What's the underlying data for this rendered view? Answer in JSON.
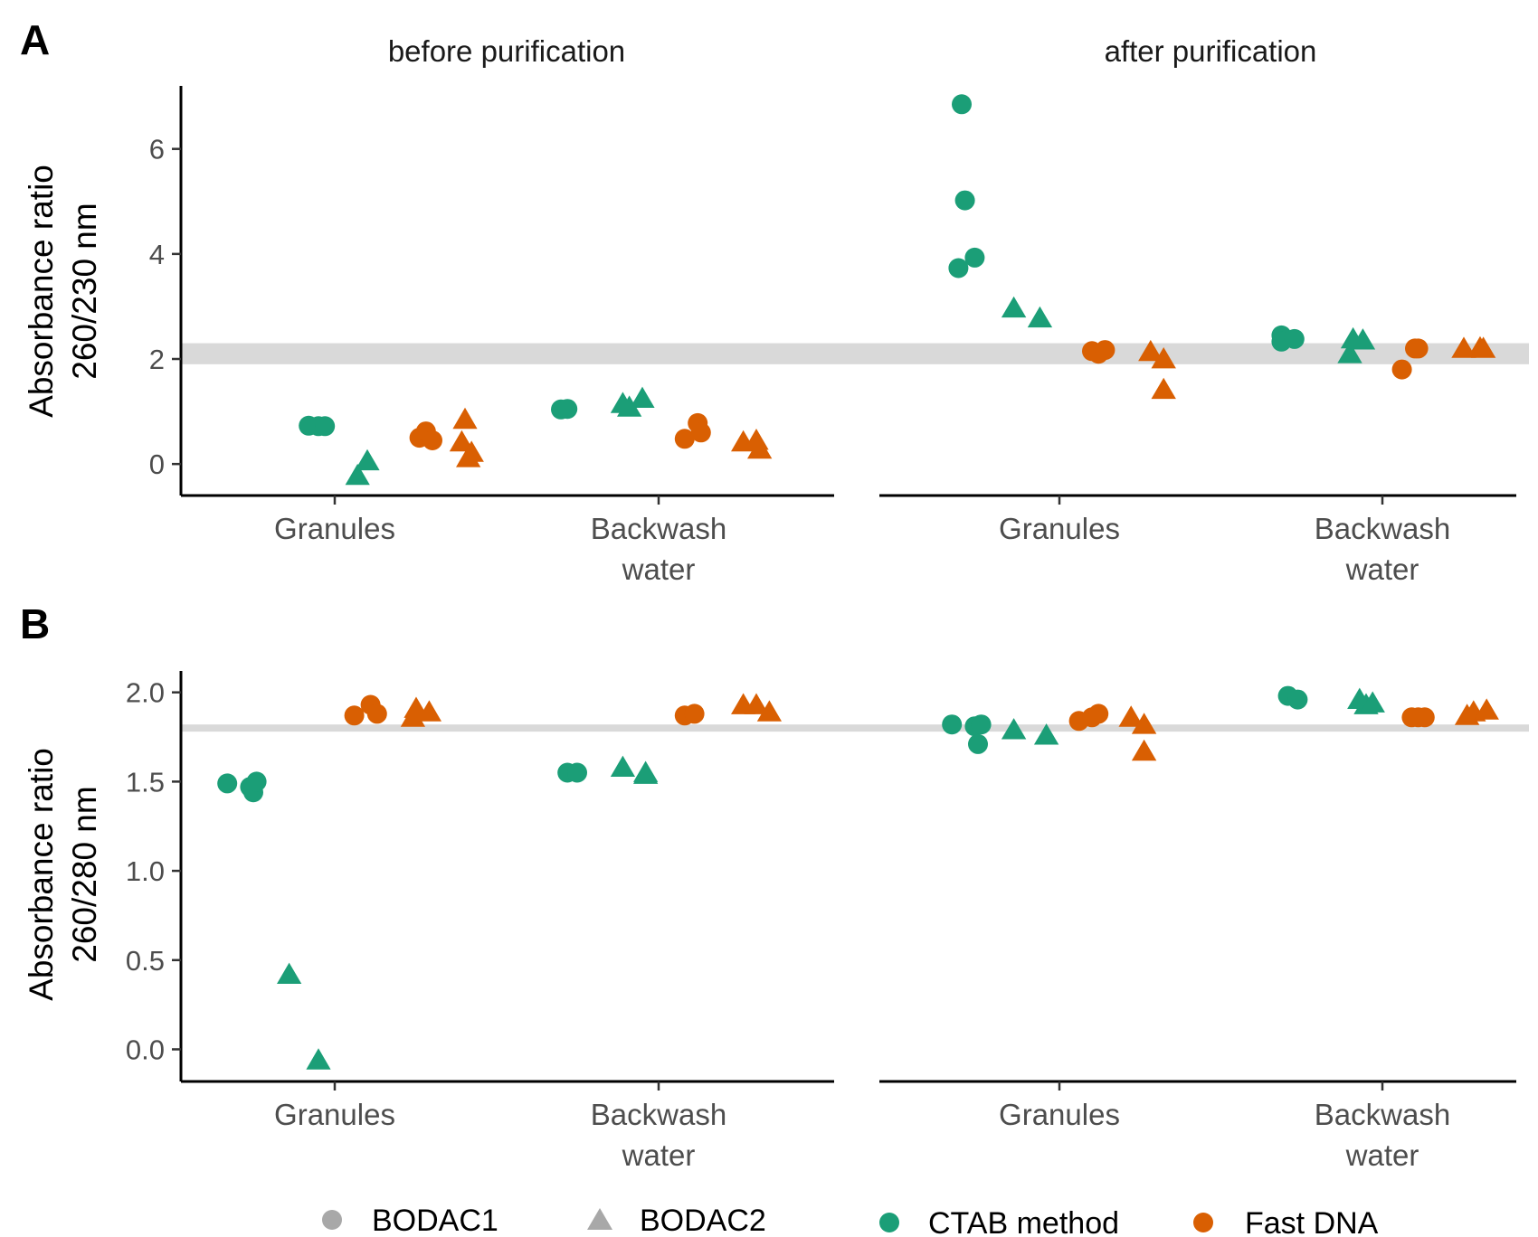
{
  "colors": {
    "ctab": "#1b9e77",
    "fastdna": "#d95f02",
    "legend_shape": "#a8a8a8",
    "ref_band": "#d9d9d9"
  },
  "facets": [
    "before purification",
    "after purification"
  ],
  "x_categories": [
    [
      "Granules"
    ],
    [
      "Backwash",
      "water"
    ]
  ],
  "legend": {
    "shape_items": [
      {
        "label": "BODAC1",
        "shape": "circle"
      },
      {
        "label": "BODAC2",
        "shape": "triangle"
      }
    ],
    "color_items": [
      {
        "label": "CTAB method",
        "color_key": "ctab"
      },
      {
        "label": "Fast DNA",
        "color_key": "fastdna"
      }
    ]
  },
  "chart_data": [
    {
      "panel_label": "A",
      "type": "scatter",
      "ylabel": [
        "Absorbance ratio",
        "260/230 nm"
      ],
      "ylim": [
        -0.6,
        7.2
      ],
      "yticks": [
        0,
        2,
        4,
        6
      ],
      "ytick_labels": [
        "0",
        "2",
        "4",
        "6"
      ],
      "reference_band": [
        1.9,
        2.3
      ],
      "facets": [
        {
          "name": "before purification",
          "points": [
            {
              "cat": 0,
              "method": "ctab",
              "bodac": 1,
              "y": 0.73,
              "dx": -0.08
            },
            {
              "cat": 0,
              "method": "ctab",
              "bodac": 1,
              "y": 0.72,
              "dx": -0.05
            },
            {
              "cat": 0,
              "method": "ctab",
              "bodac": 1,
              "y": 0.72,
              "dx": -0.03
            },
            {
              "cat": 0,
              "method": "ctab",
              "bodac": 2,
              "y": -0.22,
              "dx": 0.07
            },
            {
              "cat": 0,
              "method": "ctab",
              "bodac": 2,
              "y": 0.06,
              "dx": 0.1
            },
            {
              "cat": 0,
              "method": "fastdna",
              "bodac": 1,
              "y": 0.5,
              "dx": 0.26
            },
            {
              "cat": 0,
              "method": "fastdna",
              "bodac": 1,
              "y": 0.62,
              "dx": 0.28
            },
            {
              "cat": 0,
              "method": "fastdna",
              "bodac": 1,
              "y": 0.45,
              "dx": 0.3
            },
            {
              "cat": 0,
              "method": "fastdna",
              "bodac": 2,
              "y": 0.85,
              "dx": 0.4
            },
            {
              "cat": 0,
              "method": "fastdna",
              "bodac": 2,
              "y": 0.42,
              "dx": 0.39
            },
            {
              "cat": 0,
              "method": "fastdna",
              "bodac": 2,
              "y": 0.22,
              "dx": 0.42
            },
            {
              "cat": 0,
              "method": "fastdna",
              "bodac": 2,
              "y": 0.12,
              "dx": 0.41
            },
            {
              "cat": 1,
              "method": "ctab",
              "bodac": 1,
              "y": 1.04,
              "dx": -0.3
            },
            {
              "cat": 1,
              "method": "ctab",
              "bodac": 1,
              "y": 1.05,
              "dx": -0.28
            },
            {
              "cat": 1,
              "method": "ctab",
              "bodac": 2,
              "y": 1.15,
              "dx": -0.11
            },
            {
              "cat": 1,
              "method": "ctab",
              "bodac": 2,
              "y": 1.08,
              "dx": -0.09
            },
            {
              "cat": 1,
              "method": "ctab",
              "bodac": 2,
              "y": 1.25,
              "dx": -0.05
            },
            {
              "cat": 1,
              "method": "fastdna",
              "bodac": 1,
              "y": 0.48,
              "dx": 0.08
            },
            {
              "cat": 1,
              "method": "fastdna",
              "bodac": 1,
              "y": 0.78,
              "dx": 0.12
            },
            {
              "cat": 1,
              "method": "fastdna",
              "bodac": 1,
              "y": 0.6,
              "dx": 0.13
            },
            {
              "cat": 1,
              "method": "fastdna",
              "bodac": 2,
              "y": 0.42,
              "dx": 0.26
            },
            {
              "cat": 1,
              "method": "fastdna",
              "bodac": 2,
              "y": 0.45,
              "dx": 0.3
            },
            {
              "cat": 1,
              "method": "fastdna",
              "bodac": 2,
              "y": 0.28,
              "dx": 0.31
            }
          ]
        },
        {
          "name": "after purification",
          "points": [
            {
              "cat": 0,
              "method": "ctab",
              "bodac": 1,
              "y": 6.85,
              "dx": -0.3
            },
            {
              "cat": 0,
              "method": "ctab",
              "bodac": 1,
              "y": 5.02,
              "dx": -0.29
            },
            {
              "cat": 0,
              "method": "ctab",
              "bodac": 1,
              "y": 3.73,
              "dx": -0.31
            },
            {
              "cat": 0,
              "method": "ctab",
              "bodac": 1,
              "y": 3.93,
              "dx": -0.26
            },
            {
              "cat": 0,
              "method": "ctab",
              "bodac": 2,
              "y": 2.97,
              "dx": -0.14
            },
            {
              "cat": 0,
              "method": "ctab",
              "bodac": 2,
              "y": 2.78,
              "dx": -0.06
            },
            {
              "cat": 0,
              "method": "fastdna",
              "bodac": 1,
              "y": 2.15,
              "dx": 0.1
            },
            {
              "cat": 0,
              "method": "fastdna",
              "bodac": 1,
              "y": 2.1,
              "dx": 0.12
            },
            {
              "cat": 0,
              "method": "fastdna",
              "bodac": 1,
              "y": 2.17,
              "dx": 0.14
            },
            {
              "cat": 0,
              "method": "fastdna",
              "bodac": 2,
              "y": 2.14,
              "dx": 0.28
            },
            {
              "cat": 0,
              "method": "fastdna",
              "bodac": 2,
              "y": 2.0,
              "dx": 0.32
            },
            {
              "cat": 0,
              "method": "fastdna",
              "bodac": 2,
              "y": 1.42,
              "dx": 0.32
            },
            {
              "cat": 1,
              "method": "ctab",
              "bodac": 1,
              "y": 2.45,
              "dx": -0.31
            },
            {
              "cat": 1,
              "method": "ctab",
              "bodac": 1,
              "y": 2.33,
              "dx": -0.31
            },
            {
              "cat": 1,
              "method": "ctab",
              "bodac": 1,
              "y": 2.38,
              "dx": -0.27
            },
            {
              "cat": 1,
              "method": "ctab",
              "bodac": 2,
              "y": 2.1,
              "dx": -0.1
            },
            {
              "cat": 1,
              "method": "ctab",
              "bodac": 2,
              "y": 2.38,
              "dx": -0.09
            },
            {
              "cat": 1,
              "method": "ctab",
              "bodac": 2,
              "y": 2.36,
              "dx": -0.06
            },
            {
              "cat": 1,
              "method": "fastdna",
              "bodac": 1,
              "y": 1.8,
              "dx": 0.06
            },
            {
              "cat": 1,
              "method": "fastdna",
              "bodac": 1,
              "y": 2.2,
              "dx": 0.1
            },
            {
              "cat": 1,
              "method": "fastdna",
              "bodac": 1,
              "y": 2.2,
              "dx": 0.11
            },
            {
              "cat": 1,
              "method": "fastdna",
              "bodac": 2,
              "y": 2.2,
              "dx": 0.25
            },
            {
              "cat": 1,
              "method": "fastdna",
              "bodac": 2,
              "y": 2.21,
              "dx": 0.3
            },
            {
              "cat": 1,
              "method": "fastdna",
              "bodac": 2,
              "y": 2.2,
              "dx": 0.31
            }
          ]
        }
      ]
    },
    {
      "panel_label": "B",
      "type": "scatter",
      "ylabel": [
        "Absorbance ratio",
        "260/280 nm"
      ],
      "ylim": [
        -0.18,
        2.12
      ],
      "yticks": [
        0,
        0.5,
        1,
        1.5,
        2
      ],
      "ytick_labels": [
        "0.0",
        "0.5",
        "1.0",
        "1.5",
        "2.0"
      ],
      "reference_band": [
        1.78,
        1.82
      ],
      "facets": [
        {
          "name": "before purification",
          "points": [
            {
              "cat": 0,
              "method": "ctab",
              "bodac": 1,
              "y": 1.49,
              "dx": -0.33
            },
            {
              "cat": 0,
              "method": "ctab",
              "bodac": 1,
              "y": 1.47,
              "dx": -0.26
            },
            {
              "cat": 0,
              "method": "ctab",
              "bodac": 1,
              "y": 1.44,
              "dx": -0.25
            },
            {
              "cat": 0,
              "method": "ctab",
              "bodac": 1,
              "y": 1.5,
              "dx": -0.24
            },
            {
              "cat": 0,
              "method": "ctab",
              "bodac": 2,
              "y": 0.42,
              "dx": -0.14
            },
            {
              "cat": 0,
              "method": "ctab",
              "bodac": 2,
              "y": -0.06,
              "dx": -0.05
            },
            {
              "cat": 0,
              "method": "fastdna",
              "bodac": 1,
              "y": 1.87,
              "dx": 0.06
            },
            {
              "cat": 0,
              "method": "fastdna",
              "bodac": 1,
              "y": 1.93,
              "dx": 0.11
            },
            {
              "cat": 0,
              "method": "fastdna",
              "bodac": 1,
              "y": 1.88,
              "dx": 0.13
            },
            {
              "cat": 0,
              "method": "fastdna",
              "bodac": 2,
              "y": 1.86,
              "dx": 0.24
            },
            {
              "cat": 0,
              "method": "fastdna",
              "bodac": 2,
              "y": 1.91,
              "dx": 0.25
            },
            {
              "cat": 0,
              "method": "fastdna",
              "bodac": 2,
              "y": 1.89,
              "dx": 0.29
            },
            {
              "cat": 1,
              "method": "ctab",
              "bodac": 1,
              "y": 1.55,
              "dx": -0.28
            },
            {
              "cat": 1,
              "method": "ctab",
              "bodac": 1,
              "y": 1.55,
              "dx": -0.25
            },
            {
              "cat": 1,
              "method": "ctab",
              "bodac": 2,
              "y": 1.58,
              "dx": -0.11
            },
            {
              "cat": 1,
              "method": "ctab",
              "bodac": 2,
              "y": 1.54,
              "dx": -0.04
            },
            {
              "cat": 1,
              "method": "ctab",
              "bodac": 2,
              "y": 1.55,
              "dx": -0.04
            },
            {
              "cat": 1,
              "method": "fastdna",
              "bodac": 1,
              "y": 1.87,
              "dx": 0.08
            },
            {
              "cat": 1,
              "method": "fastdna",
              "bodac": 1,
              "y": 1.88,
              "dx": 0.11
            },
            {
              "cat": 1,
              "method": "fastdna",
              "bodac": 2,
              "y": 1.93,
              "dx": 0.26
            },
            {
              "cat": 1,
              "method": "fastdna",
              "bodac": 2,
              "y": 1.93,
              "dx": 0.3
            },
            {
              "cat": 1,
              "method": "fastdna",
              "bodac": 2,
              "y": 1.89,
              "dx": 0.34
            }
          ]
        },
        {
          "name": "after purification",
          "points": [
            {
              "cat": 0,
              "method": "ctab",
              "bodac": 1,
              "y": 1.82,
              "dx": -0.33
            },
            {
              "cat": 0,
              "method": "ctab",
              "bodac": 1,
              "y": 1.81,
              "dx": -0.26
            },
            {
              "cat": 0,
              "method": "ctab",
              "bodac": 1,
              "y": 1.82,
              "dx": -0.24
            },
            {
              "cat": 0,
              "method": "ctab",
              "bodac": 1,
              "y": 1.71,
              "dx": -0.25
            },
            {
              "cat": 0,
              "method": "ctab",
              "bodac": 2,
              "y": 1.79,
              "dx": -0.14
            },
            {
              "cat": 0,
              "method": "ctab",
              "bodac": 2,
              "y": 1.76,
              "dx": -0.04
            },
            {
              "cat": 0,
              "method": "fastdna",
              "bodac": 1,
              "y": 1.84,
              "dx": 0.06
            },
            {
              "cat": 0,
              "method": "fastdna",
              "bodac": 1,
              "y": 1.86,
              "dx": 0.1
            },
            {
              "cat": 0,
              "method": "fastdna",
              "bodac": 1,
              "y": 1.88,
              "dx": 0.12
            },
            {
              "cat": 0,
              "method": "fastdna",
              "bodac": 2,
              "y": 1.86,
              "dx": 0.22
            },
            {
              "cat": 0,
              "method": "fastdna",
              "bodac": 2,
              "y": 1.82,
              "dx": 0.26
            },
            {
              "cat": 0,
              "method": "fastdna",
              "bodac": 2,
              "y": 1.67,
              "dx": 0.26
            },
            {
              "cat": 1,
              "method": "ctab",
              "bodac": 1,
              "y": 1.98,
              "dx": -0.29
            },
            {
              "cat": 1,
              "method": "ctab",
              "bodac": 1,
              "y": 1.96,
              "dx": -0.26
            },
            {
              "cat": 1,
              "method": "ctab",
              "bodac": 2,
              "y": 1.96,
              "dx": -0.07
            },
            {
              "cat": 1,
              "method": "ctab",
              "bodac": 2,
              "y": 1.93,
              "dx": -0.05
            },
            {
              "cat": 1,
              "method": "ctab",
              "bodac": 2,
              "y": 1.94,
              "dx": -0.03
            },
            {
              "cat": 1,
              "method": "fastdna",
              "bodac": 1,
              "y": 1.86,
              "dx": 0.09
            },
            {
              "cat": 1,
              "method": "fastdna",
              "bodac": 1,
              "y": 1.86,
              "dx": 0.11
            },
            {
              "cat": 1,
              "method": "fastdna",
              "bodac": 1,
              "y": 1.86,
              "dx": 0.13
            },
            {
              "cat": 1,
              "method": "fastdna",
              "bodac": 2,
              "y": 1.87,
              "dx": 0.26
            },
            {
              "cat": 1,
              "method": "fastdna",
              "bodac": 2,
              "y": 1.89,
              "dx": 0.28
            },
            {
              "cat": 1,
              "method": "fastdna",
              "bodac": 2,
              "y": 1.9,
              "dx": 0.32
            }
          ]
        }
      ]
    }
  ]
}
